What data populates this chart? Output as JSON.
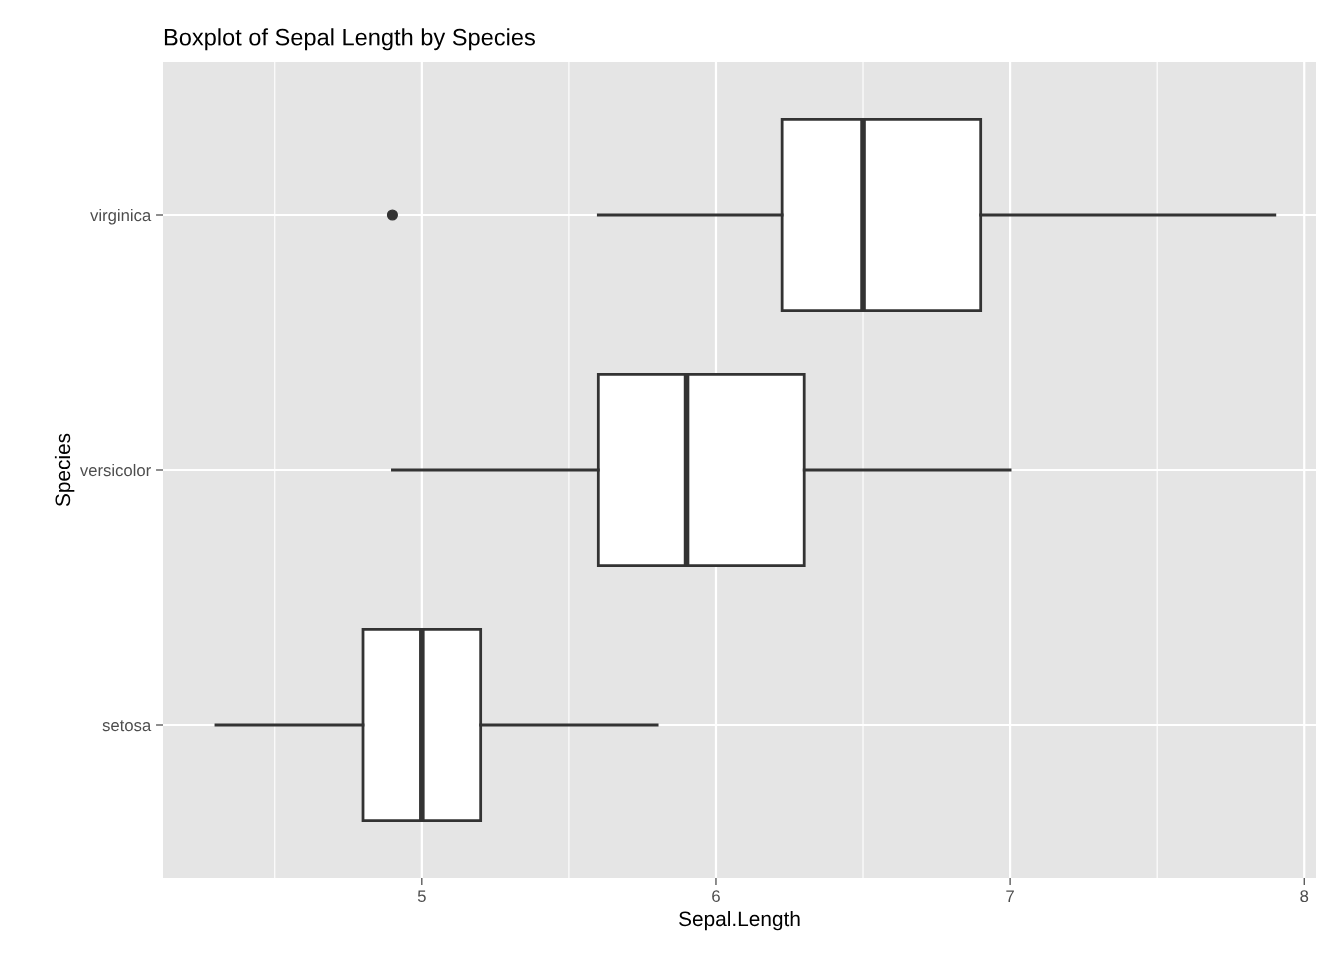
{
  "chart_data": {
    "type": "box",
    "orientation": "horizontal",
    "title": "Boxplot of Sepal Length by Species",
    "xlabel": "Sepal.Length",
    "ylabel": "Species",
    "categories": [
      "virginica",
      "versicolor",
      "setosa"
    ],
    "boxes": [
      {
        "low": 5.6,
        "q1": 6.225,
        "median": 6.5,
        "q3": 6.9,
        "high": 7.9,
        "outliers": [
          4.9
        ]
      },
      {
        "low": 4.9,
        "q1": 5.6,
        "median": 5.9,
        "q3": 6.3,
        "high": 7.0
      },
      {
        "low": 4.3,
        "q1": 4.8,
        "median": 5.0,
        "q3": 5.2,
        "high": 5.8
      }
    ],
    "color": "#ffffff",
    "xlim": [
      4.12,
      8.04
    ],
    "xticks": [
      5,
      6,
      7,
      8
    ],
    "grid": true
  }
}
